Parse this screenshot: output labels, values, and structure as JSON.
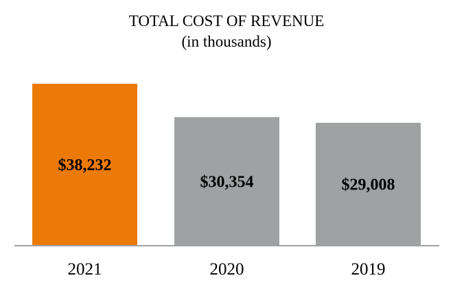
{
  "colors": {
    "highlight": "#EC7A08",
    "bar": "#9EA2A2",
    "baseline": "#9EA2A2",
    "text": "#000000"
  },
  "chart_data": {
    "type": "bar",
    "title": "TOTAL COST OF REVENUE",
    "subtitle": "(in thousands)",
    "xlabel": "",
    "ylabel": "",
    "categories": [
      "2021",
      "2020",
      "2019"
    ],
    "values": [
      38232,
      30354,
      29008
    ],
    "data_labels": [
      "$38,232",
      "$30,354",
      "$29,008"
    ],
    "highlight_index": 0,
    "ylim": [
      0,
      38232
    ],
    "grid": false,
    "legend": "none"
  }
}
